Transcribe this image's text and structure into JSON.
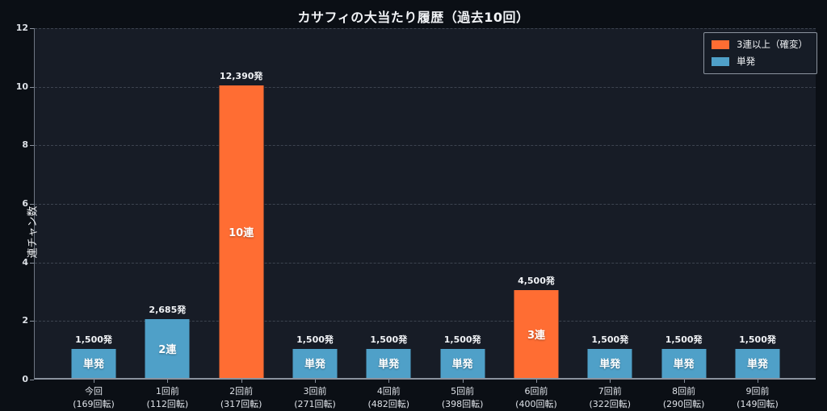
{
  "title": "カサフィの大当たり履歴（過去10回）",
  "colors": {
    "background": "#0b0f15",
    "plot_background": "#171c26",
    "grid": "#3d4450",
    "spine": "#6e7682",
    "axis": "#8a929e",
    "text": "#f1f3f6",
    "tick_text": "#dde1e7",
    "legend_border": "#8b939e",
    "orange": "#ff6d33",
    "blue": "#4fa0c8"
  },
  "legend": {
    "items": [
      {
        "label": "3連以上（確変）",
        "color": "#ff6d33"
      },
      {
        "label": "単発",
        "color": "#4fa0c8"
      }
    ]
  },
  "chart_data": {
    "type": "bar",
    "title": "カサフィの大当たり履歴（過去10回）",
    "xlabel": "",
    "ylabel": "連チャン数",
    "ylim": [
      0,
      12
    ],
    "yticks": [
      0,
      2,
      4,
      6,
      8,
      10,
      12
    ],
    "ytick_labels": [
      "0",
      "2",
      "4",
      "6",
      "8",
      "10",
      "12"
    ],
    "grid": "dashed horizontal",
    "legend_position": "upper right",
    "categories": [
      "今回",
      "1回前",
      "2回前",
      "3回前",
      "4回前",
      "5回前",
      "6回前",
      "7回前",
      "8回前",
      "9回前"
    ],
    "spins": [
      "(169回転)",
      "(112回転)",
      "(317回転)",
      "(271回転)",
      "(482回転)",
      "(398回転)",
      "(400回転)",
      "(322回転)",
      "(290回転)",
      "(149回転)"
    ],
    "values": [
      1,
      2,
      10,
      1,
      1,
      1,
      3,
      1,
      1,
      1
    ],
    "payout_labels": [
      "1,500発",
      "2,685発",
      "12,390発",
      "1,500発",
      "1,500発",
      "1,500発",
      "4,500発",
      "1,500発",
      "1,500発",
      "1,500発"
    ],
    "bar_labels": [
      "単発",
      "2連",
      "10連",
      "単発",
      "単発",
      "単発",
      "3連",
      "単発",
      "単発",
      "単発"
    ],
    "bar_colors": [
      "#4fa0c8",
      "#4fa0c8",
      "#ff6d33",
      "#4fa0c8",
      "#4fa0c8",
      "#4fa0c8",
      "#ff6d33",
      "#4fa0c8",
      "#4fa0c8",
      "#4fa0c8"
    ]
  }
}
